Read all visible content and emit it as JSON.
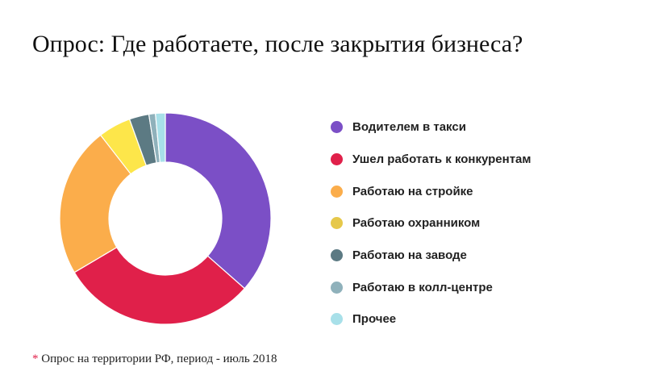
{
  "title": "Опрос: Где работаете, после закрытия бизнеса?",
  "footnote": {
    "marker": "*",
    "text": "Опрос на территории РФ, период - июль 2018"
  },
  "chart_data": {
    "type": "pie",
    "variant": "donut",
    "legend_position": "right",
    "categories": [
      "Водителем в такси",
      "Ушел работать к конкурентам",
      "Работаю на стройке",
      "Работаю охранником",
      "Работаю на заводе",
      "Работаю в колл-центре",
      "Прочее"
    ],
    "values": [
      36.5,
      30.0,
      23.0,
      5.0,
      3.0,
      1.0,
      1.5
    ],
    "unit": "%",
    "colors": [
      "#7b4fc6",
      "#e0204a",
      "#fbad4b",
      "#fde64a",
      "#5c7a83",
      "#8fb1bb",
      "#a8e0e9"
    ],
    "legend_dot_colors": [
      "#7b4fc6",
      "#e0204a",
      "#fbad4b",
      "#e6c84a",
      "#5c7a83",
      "#8fb1bb",
      "#a8e0e9"
    ]
  }
}
